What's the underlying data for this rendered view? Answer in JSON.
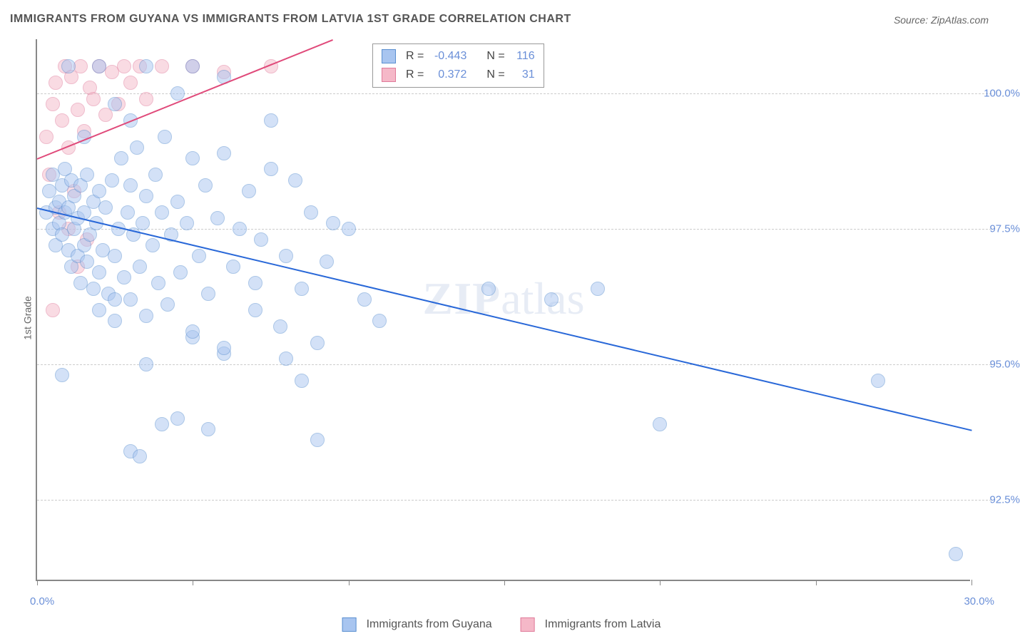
{
  "chart": {
    "type": "scatter",
    "title": "IMMIGRANTS FROM GUYANA VS IMMIGRANTS FROM LATVIA 1ST GRADE CORRELATION CHART",
    "source": "Source: ZipAtlas.com",
    "watermark": "ZIPatlas",
    "y_axis_label": "1st Grade",
    "background_color": "#ffffff",
    "grid_color": "#cccccc",
    "axis_color": "#888888",
    "label_color": "#6a8fd8",
    "xlim": [
      0,
      30
    ],
    "ylim": [
      91,
      101
    ],
    "x_ticks": [
      0,
      5,
      10,
      15,
      20,
      25,
      30
    ],
    "x_tick_labels": {
      "0": "0.0%",
      "30": "30.0%"
    },
    "y_ticks": [
      92.5,
      95.0,
      97.5,
      100.0
    ],
    "y_tick_labels": [
      "92.5%",
      "95.0%",
      "97.5%",
      "100.0%"
    ],
    "marker_size": 20,
    "marker_opacity": 0.5
  },
  "series": {
    "guyana": {
      "label": "Immigrants from Guyana",
      "fill_color": "#a8c5f0",
      "stroke_color": "#5a8fd0",
      "line_color": "#2968d8",
      "R": "-0.443",
      "N": "116",
      "trend": {
        "x1": 0,
        "y1": 97.9,
        "x2": 30,
        "y2": 93.8
      },
      "points": [
        [
          0.3,
          97.8
        ],
        [
          0.4,
          98.2
        ],
        [
          0.5,
          97.5
        ],
        [
          0.5,
          98.5
        ],
        [
          0.6,
          97.9
        ],
        [
          0.6,
          97.2
        ],
        [
          0.7,
          98.0
        ],
        [
          0.7,
          97.6
        ],
        [
          0.8,
          98.3
        ],
        [
          0.8,
          97.4
        ],
        [
          0.9,
          97.8
        ],
        [
          0.9,
          98.6
        ],
        [
          1.0,
          97.1
        ],
        [
          1.0,
          97.9
        ],
        [
          1.1,
          98.4
        ],
        [
          1.1,
          96.8
        ],
        [
          1.2,
          97.5
        ],
        [
          1.2,
          98.1
        ],
        [
          1.3,
          97.0
        ],
        [
          1.3,
          97.7
        ],
        [
          1.4,
          98.3
        ],
        [
          1.4,
          96.5
        ],
        [
          1.5,
          97.8
        ],
        [
          1.5,
          97.2
        ],
        [
          1.6,
          98.5
        ],
        [
          1.6,
          96.9
        ],
        [
          1.7,
          97.4
        ],
        [
          1.8,
          98.0
        ],
        [
          1.8,
          96.4
        ],
        [
          1.9,
          97.6
        ],
        [
          2.0,
          98.2
        ],
        [
          2.0,
          96.7
        ],
        [
          2.1,
          97.1
        ],
        [
          2.2,
          97.9
        ],
        [
          2.3,
          96.3
        ],
        [
          2.4,
          98.4
        ],
        [
          2.5,
          97.0
        ],
        [
          2.5,
          95.8
        ],
        [
          2.6,
          97.5
        ],
        [
          2.7,
          98.8
        ],
        [
          2.8,
          96.6
        ],
        [
          2.9,
          97.8
        ],
        [
          3.0,
          98.3
        ],
        [
          3.0,
          96.2
        ],
        [
          3.1,
          97.4
        ],
        [
          3.2,
          99.0
        ],
        [
          3.3,
          96.8
        ],
        [
          3.4,
          97.6
        ],
        [
          3.5,
          98.1
        ],
        [
          3.5,
          95.9
        ],
        [
          3.7,
          97.2
        ],
        [
          3.8,
          98.5
        ],
        [
          3.9,
          96.5
        ],
        [
          4.0,
          97.8
        ],
        [
          4.1,
          99.2
        ],
        [
          4.2,
          96.1
        ],
        [
          4.3,
          97.4
        ],
        [
          4.5,
          98.0
        ],
        [
          4.6,
          96.7
        ],
        [
          4.8,
          97.6
        ],
        [
          5.0,
          98.8
        ],
        [
          5.0,
          95.5
        ],
        [
          5.2,
          97.0
        ],
        [
          5.4,
          98.3
        ],
        [
          5.5,
          96.3
        ],
        [
          5.8,
          97.7
        ],
        [
          6.0,
          98.9
        ],
        [
          6.0,
          95.2
        ],
        [
          6.3,
          96.8
        ],
        [
          6.5,
          97.5
        ],
        [
          6.8,
          98.2
        ],
        [
          7.0,
          96.0
        ],
        [
          7.2,
          97.3
        ],
        [
          7.5,
          98.6
        ],
        [
          7.8,
          95.7
        ],
        [
          8.0,
          97.0
        ],
        [
          8.3,
          98.4
        ],
        [
          8.5,
          96.4
        ],
        [
          8.8,
          97.8
        ],
        [
          9.0,
          95.4
        ],
        [
          9.3,
          96.9
        ],
        [
          9.5,
          97.6
        ],
        [
          10.0,
          97.5
        ],
        [
          10.5,
          96.2
        ],
        [
          11.0,
          95.8
        ],
        [
          0.8,
          94.8
        ],
        [
          2.0,
          96.0
        ],
        [
          2.5,
          96.2
        ],
        [
          3.0,
          93.4
        ],
        [
          3.3,
          93.3
        ],
        [
          3.5,
          95.0
        ],
        [
          4.0,
          93.9
        ],
        [
          4.5,
          94.0
        ],
        [
          5.0,
          95.6
        ],
        [
          5.5,
          93.8
        ],
        [
          6.0,
          95.3
        ],
        [
          7.0,
          96.5
        ],
        [
          8.0,
          95.1
        ],
        [
          8.5,
          94.7
        ],
        [
          9.0,
          93.6
        ],
        [
          14.5,
          96.4
        ],
        [
          16.5,
          96.2
        ],
        [
          18.0,
          96.4
        ],
        [
          20.0,
          93.9
        ],
        [
          27.0,
          94.7
        ],
        [
          29.5,
          91.5
        ],
        [
          1.0,
          100.5
        ],
        [
          2.0,
          100.5
        ],
        [
          3.5,
          100.5
        ],
        [
          5.0,
          100.5
        ],
        [
          6.0,
          100.3
        ],
        [
          4.5,
          100.0
        ],
        [
          3.0,
          99.5
        ],
        [
          1.5,
          99.2
        ],
        [
          2.5,
          99.8
        ],
        [
          7.5,
          99.5
        ]
      ]
    },
    "latvia": {
      "label": "Immigrants from Latvia",
      "fill_color": "#f5b8c8",
      "stroke_color": "#e07a9a",
      "line_color": "#e04a7a",
      "R": "0.372",
      "N": "31",
      "trend": {
        "x1": 0,
        "y1": 98.8,
        "x2": 9.5,
        "y2": 101
      },
      "points": [
        [
          0.3,
          99.2
        ],
        [
          0.5,
          99.8
        ],
        [
          0.6,
          100.2
        ],
        [
          0.8,
          99.5
        ],
        [
          0.9,
          100.5
        ],
        [
          1.0,
          99.0
        ],
        [
          1.1,
          100.3
        ],
        [
          1.3,
          99.7
        ],
        [
          1.4,
          100.5
        ],
        [
          1.5,
          99.3
        ],
        [
          1.7,
          100.1
        ],
        [
          1.8,
          99.9
        ],
        [
          2.0,
          100.5
        ],
        [
          2.2,
          99.6
        ],
        [
          2.4,
          100.4
        ],
        [
          2.6,
          99.8
        ],
        [
          2.8,
          100.5
        ],
        [
          3.0,
          100.2
        ],
        [
          3.3,
          100.5
        ],
        [
          3.5,
          99.9
        ],
        [
          0.4,
          98.5
        ],
        [
          0.7,
          97.8
        ],
        [
          1.0,
          97.5
        ],
        [
          1.3,
          96.8
        ],
        [
          0.5,
          96.0
        ],
        [
          1.2,
          98.2
        ],
        [
          1.6,
          97.3
        ],
        [
          4.0,
          100.5
        ],
        [
          5.0,
          100.5
        ],
        [
          6.0,
          100.4
        ],
        [
          7.5,
          100.5
        ]
      ]
    }
  },
  "legend": {
    "stats_box": {
      "rows": [
        {
          "series": "guyana",
          "r_label": "R =",
          "n_label": "N ="
        },
        {
          "series": "latvia",
          "r_label": "R =",
          "n_label": "N ="
        }
      ]
    }
  }
}
